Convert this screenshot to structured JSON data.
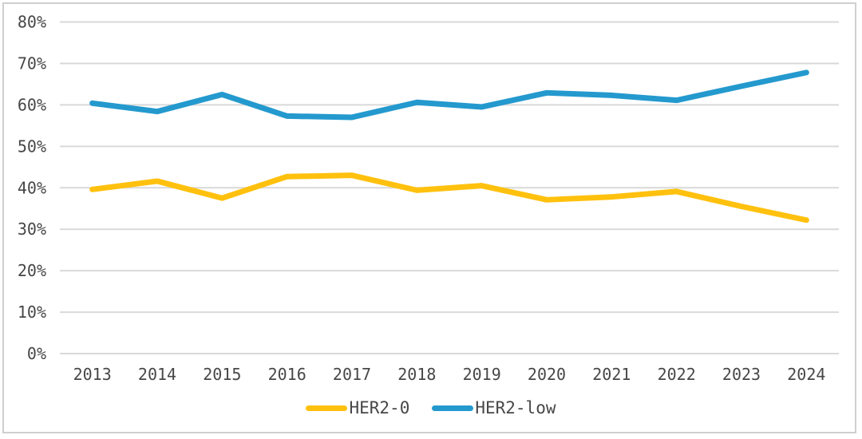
{
  "chart_data": {
    "type": "line",
    "title": "",
    "xlabel": "",
    "ylabel": "",
    "categories": [
      "2013",
      "2014",
      "2015",
      "2016",
      "2017",
      "2018",
      "2019",
      "2020",
      "2021",
      "2022",
      "2023",
      "2024"
    ],
    "series": [
      {
        "name": "HER2-0",
        "color": "#FFC10E",
        "values": [
          39.6,
          41.6,
          37.5,
          42.7,
          43.0,
          39.4,
          40.5,
          37.1,
          37.8,
          39.1,
          35.5,
          32.2
        ]
      },
      {
        "name": "HER2-low",
        "color": "#2499CE",
        "values": [
          60.4,
          58.4,
          62.5,
          57.3,
          57.0,
          60.6,
          59.5,
          62.9,
          62.3,
          61.1,
          64.5,
          67.8
        ]
      }
    ],
    "ylim": [
      0,
      80
    ],
    "yticks": [
      0,
      10,
      20,
      30,
      40,
      50,
      60,
      70,
      80
    ],
    "ytick_labels": [
      "0%",
      "10%",
      "20%",
      "30%",
      "40%",
      "50%",
      "60%",
      "70%",
      "80%"
    ],
    "grid": "horizontal",
    "legend_position": "bottom-center"
  },
  "style": {
    "grid_color": "#d9d9d9",
    "frame_color": "#cfcfcf",
    "text_color": "#474747",
    "background": "#ffffff",
    "line_width": 7
  }
}
